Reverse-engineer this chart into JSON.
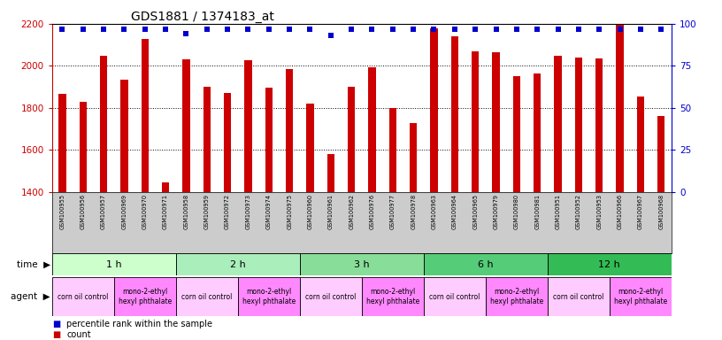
{
  "title": "GDS1881 / 1374183_at",
  "samples": [
    "GSM100955",
    "GSM100956",
    "GSM100957",
    "GSM100969",
    "GSM100970",
    "GSM100971",
    "GSM100958",
    "GSM100959",
    "GSM100972",
    "GSM100973",
    "GSM100974",
    "GSM100975",
    "GSM100960",
    "GSM100961",
    "GSM100962",
    "GSM100976",
    "GSM100977",
    "GSM100978",
    "GSM100963",
    "GSM100964",
    "GSM100965",
    "GSM100979",
    "GSM100980",
    "GSM100981",
    "GSM100951",
    "GSM100952",
    "GSM100953",
    "GSM100966",
    "GSM100967",
    "GSM100968"
  ],
  "counts": [
    1865,
    1830,
    2048,
    1935,
    2130,
    1447,
    2030,
    1900,
    1870,
    2026,
    1895,
    1985,
    1820,
    1580,
    1900,
    1995,
    1800,
    1730,
    2180,
    2140,
    2070,
    2065,
    1950,
    1965,
    2050,
    2040,
    2035,
    2195,
    1855,
    1760
  ],
  "percentiles": [
    97,
    97,
    97,
    97,
    97,
    97,
    94,
    97,
    97,
    97,
    97,
    97,
    97,
    93,
    97,
    97,
    97,
    97,
    97,
    97,
    97,
    97,
    97,
    97,
    97,
    97,
    97,
    97,
    97,
    97
  ],
  "ymin": 1400,
  "ymax": 2200,
  "yticks_left": [
    1400,
    1600,
    1800,
    2000,
    2200
  ],
  "yticks_right": [
    0,
    25,
    50,
    75,
    100
  ],
  "bar_color": "#cc0000",
  "dot_color": "#0000cc",
  "time_groups": [
    {
      "label": "1 h",
      "start": 0,
      "end": 6,
      "color": "#ccffcc"
    },
    {
      "label": "2 h",
      "start": 6,
      "end": 12,
      "color": "#aaeebb"
    },
    {
      "label": "3 h",
      "start": 12,
      "end": 18,
      "color": "#88dd99"
    },
    {
      "label": "6 h",
      "start": 18,
      "end": 24,
      "color": "#55cc77"
    },
    {
      "label": "12 h",
      "start": 24,
      "end": 30,
      "color": "#33bb55"
    }
  ],
  "agent_groups": [
    {
      "label": "corn oil control",
      "start": 0,
      "end": 3,
      "color": "#ffccff"
    },
    {
      "label": "mono-2-ethyl\nhexyl phthalate",
      "start": 3,
      "end": 6,
      "color": "#ff88ff"
    },
    {
      "label": "corn oil control",
      "start": 6,
      "end": 9,
      "color": "#ffccff"
    },
    {
      "label": "mono-2-ethyl\nhexyl phthalate",
      "start": 9,
      "end": 12,
      "color": "#ff88ff"
    },
    {
      "label": "corn oil control",
      "start": 12,
      "end": 15,
      "color": "#ffccff"
    },
    {
      "label": "mono-2-ethyl\nhexyl phthalate",
      "start": 15,
      "end": 18,
      "color": "#ff88ff"
    },
    {
      "label": "corn oil control",
      "start": 18,
      "end": 21,
      "color": "#ffccff"
    },
    {
      "label": "mono-2-ethyl\nhexyl phthalate",
      "start": 21,
      "end": 24,
      "color": "#ff88ff"
    },
    {
      "label": "corn oil control",
      "start": 24,
      "end": 27,
      "color": "#ffccff"
    },
    {
      "label": "mono-2-ethyl\nhexyl phthalate",
      "start": 27,
      "end": 30,
      "color": "#ff88ff"
    }
  ],
  "bg_color": "#ffffff",
  "left_axis_color": "#cc0000",
  "right_axis_color": "#0000cc",
  "xtick_bg": "#cccccc",
  "grid_dotted": [
    1600,
    1800,
    2000
  ],
  "fig_width": 8.16,
  "fig_height": 3.84,
  "dpi": 100
}
